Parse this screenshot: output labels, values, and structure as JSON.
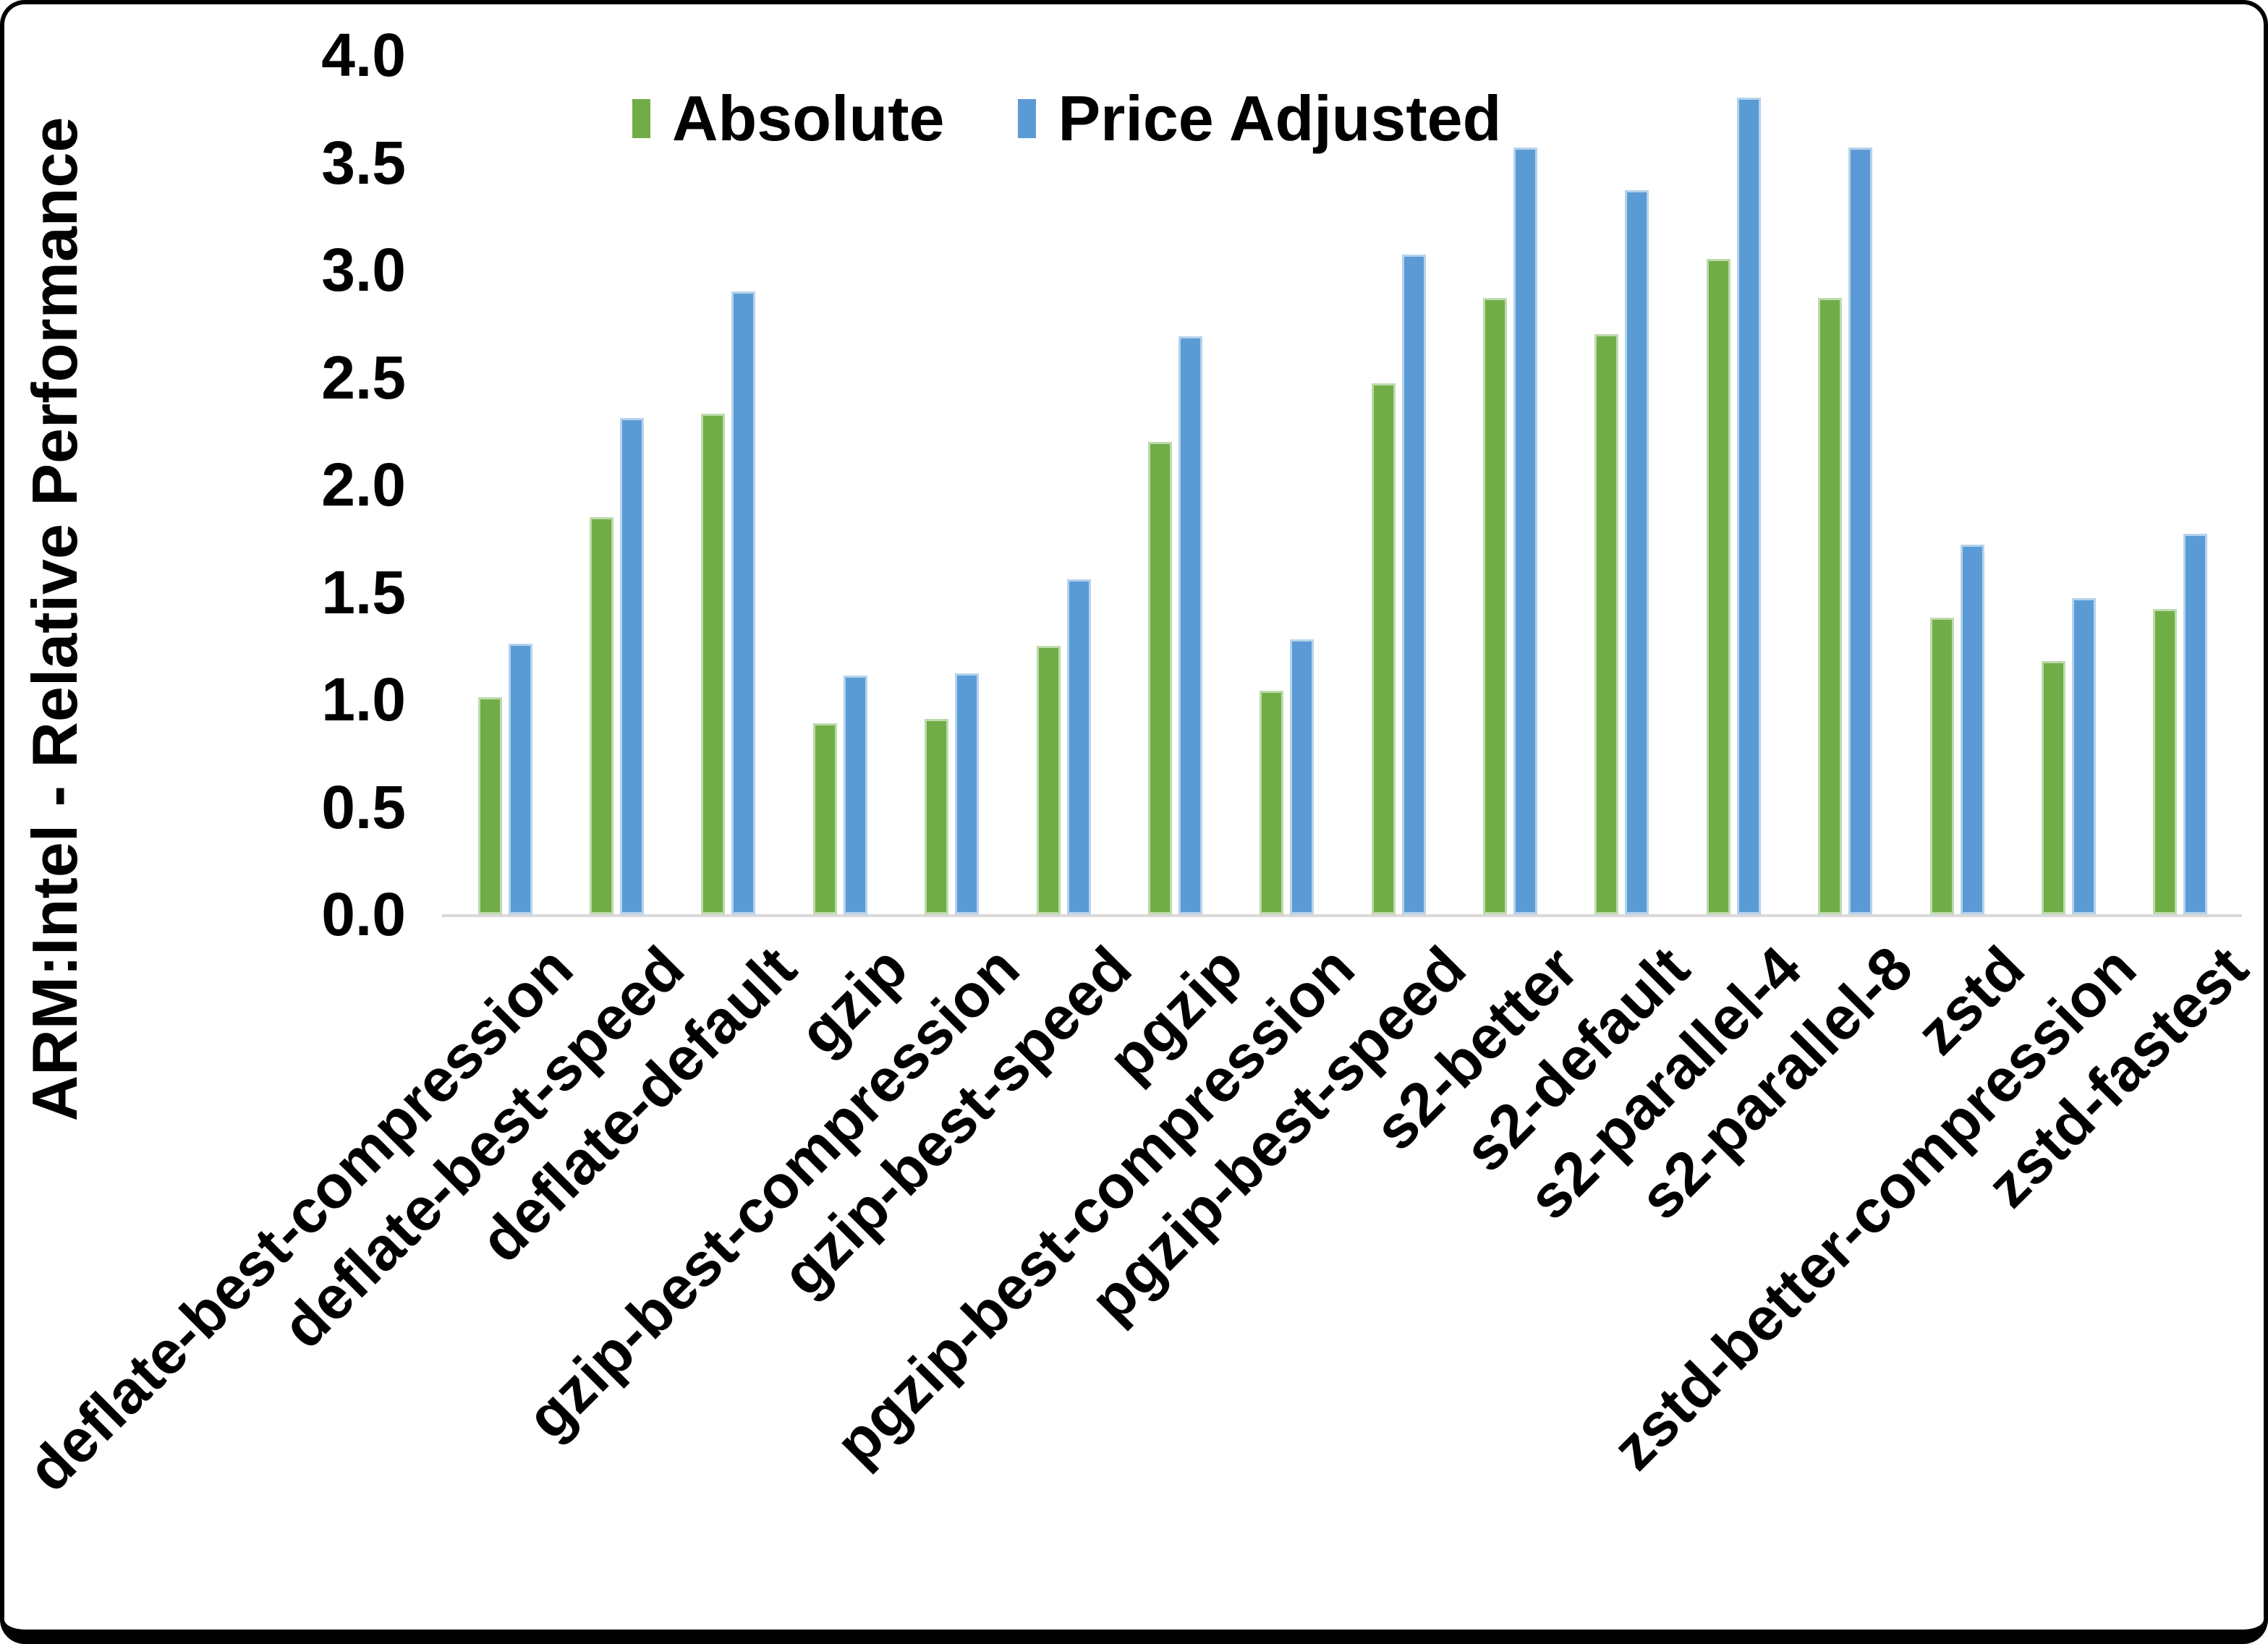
{
  "chart_data": {
    "type": "bar",
    "title": "",
    "xlabel": "",
    "ylabel": "ARM:Intel - Relative Performance",
    "ylim": [
      0.0,
      4.0
    ],
    "ytick_step": 0.5,
    "yticks": [
      "4.0",
      "3.5",
      "3.0",
      "2.5",
      "2.0",
      "1.5",
      "1.0",
      "0.5",
      "0.0"
    ],
    "grid": false,
    "legend_position": "top-center",
    "background_color": "#ffffff",
    "text_color": "#000000",
    "axis_line_color": "#d9d9d9",
    "categories": [
      "deflate-best-compression",
      "deflate-best-speed",
      "deflate-default",
      "gzip",
      "gzip-best-compression",
      "gzip-best-speed",
      "pgzip",
      "pgzip-best-compression",
      "pgzip-best-speed",
      "s2-better",
      "s2-default",
      "s2-parallel-4",
      "s2-parallel-8",
      "zstd",
      "zstd-better-compression",
      "zstd-fastest"
    ],
    "series": [
      {
        "name": "Absolute",
        "color": "#70AD47",
        "values": [
          1.01,
          1.85,
          2.33,
          0.89,
          0.91,
          1.25,
          2.2,
          1.04,
          2.47,
          2.87,
          2.7,
          3.05,
          2.87,
          1.38,
          1.18,
          1.42
        ]
      },
      {
        "name": "Price Adjusted",
        "color": "#5B9BD5",
        "values": [
          1.26,
          2.31,
          2.9,
          1.11,
          1.12,
          1.56,
          2.69,
          1.28,
          3.07,
          3.57,
          3.37,
          3.8,
          3.57,
          1.72,
          1.47,
          1.77
        ]
      }
    ]
  }
}
